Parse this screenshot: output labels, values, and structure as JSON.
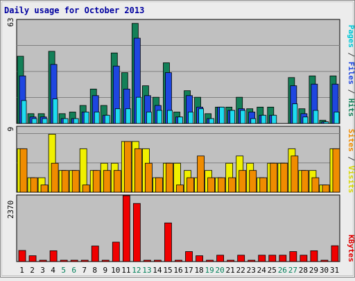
{
  "chart_data": {
    "type": "bar",
    "title": "Daily usage for October 2013",
    "categories": [
      "1",
      "2",
      "3",
      "4",
      "5",
      "6",
      "7",
      "8",
      "9",
      "10",
      "11",
      "12",
      "13",
      "14",
      "15",
      "16",
      "17",
      "18",
      "19",
      "20",
      "21",
      "22",
      "23",
      "24",
      "25",
      "26",
      "27",
      "28",
      "29",
      "30",
      "31"
    ],
    "weekend_days": [
      "5",
      "6",
      "12",
      "13",
      "19",
      "20",
      "26",
      "27"
    ],
    "panels": {
      "hits": {
        "max_label": "63",
        "ylim": [
          0,
          63
        ],
        "right_label": {
          "pages": "Pages",
          "files": "Files",
          "hits": "Hits",
          "sep": " / "
        },
        "series": [
          {
            "name": "Hits",
            "color": "#138058",
            "values": [
              41,
              6,
              6,
              44,
              6,
              7,
              11,
              21,
              11,
              43,
              31,
              61,
              23,
              16,
              37,
              7,
              20,
              16,
              6,
              10,
              10,
              16,
              9,
              10,
              10,
              0,
              28,
              9,
              29,
              2,
              29
            ]
          },
          {
            "name": "Files",
            "color": "#1E46E0",
            "values": [
              29,
              4,
              4,
              36,
              3,
              3,
              7,
              17,
              5,
              35,
              21,
              52,
              17,
              11,
              31,
              4,
              17,
              10,
              3,
              10,
              8,
              9,
              7,
              5,
              5,
              0,
              23,
              6,
              24,
              1,
              24
            ]
          },
          {
            "name": "Pages",
            "color": "#1EDCF0",
            "values": [
              14,
              3,
              3,
              15,
              3,
              3,
              7,
              7,
              5,
              9,
              9,
              16,
              7,
              8,
              8,
              4,
              7,
              9,
              3,
              10,
              8,
              8,
              3,
              5,
              5,
              0,
              12,
              4,
              8,
              1,
              7
            ]
          }
        ]
      },
      "visits": {
        "max_label": "9",
        "ylim": [
          0,
          9
        ],
        "right_label": {
          "sites": "Sites",
          "visits": "Visits",
          "sep": " / "
        },
        "series": [
          {
            "name": "Visits",
            "color": "#F0F000",
            "values": [
              6,
              2,
              2,
              8,
              3,
              3,
              6,
              3,
              4,
              4,
              7,
              7,
              6,
              2,
              4,
              4,
              3,
              2,
              3,
              2,
              4,
              5,
              4,
              2,
              4,
              4,
              6,
              3,
              3,
              1,
              6
            ]
          },
          {
            "name": "Sites",
            "color": "#F08C00",
            "values": [
              6,
              2,
              1,
              4,
              3,
              3,
              1,
              3,
              3,
              3,
              7,
              6,
              4,
              2,
              4,
              1,
              2,
              5,
              2,
              2,
              2,
              3,
              3,
              2,
              4,
              4,
              5,
              3,
              2,
              1,
              6
            ]
          }
        ]
      },
      "kbytes": {
        "max_label": "2370",
        "ylim": [
          0,
          2370
        ],
        "right_label": "KBytes",
        "series": [
          {
            "name": "KBytes",
            "color": "#F00000",
            "values": [
              400,
              210,
              20,
              390,
              20,
              20,
              20,
              560,
              20,
              700,
              2370,
              2090,
              40,
              40,
              1390,
              20,
              360,
              210,
              20,
              230,
              30,
              230,
              20,
              230,
              230,
              230,
              360,
              230,
              390,
              40,
              570
            ]
          }
        ]
      }
    }
  }
}
